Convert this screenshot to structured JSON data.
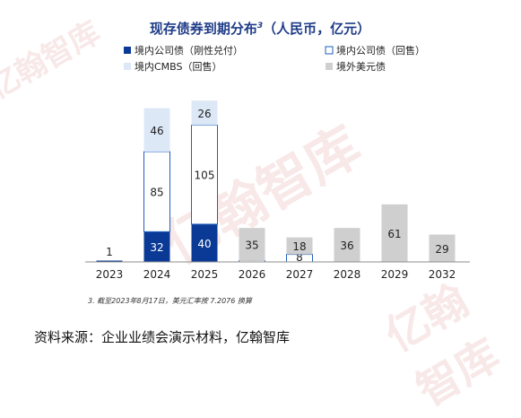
{
  "page": {
    "footnote": "3. 截至2023年8月17日，美元汇率按 7.2076 换算",
    "source": "资料来源：企业业绩会演示材料，亿翰智库",
    "watermark": "亿翰智库"
  },
  "colors": {
    "rigid": "#0b3a96",
    "puttable": "#ffffff",
    "puttable_border": "#1f5fbf",
    "cmbs": "#dde8f7",
    "offshore": "#cfcfcf",
    "title": "#1f3c88",
    "text": "#222222"
  },
  "chart_data": {
    "type": "bar",
    "stacked": true,
    "title": "现存债券到期分布",
    "title_sup": "3",
    "title_unit": "（人民币，亿元）",
    "categories": [
      "2023",
      "2024",
      "2025",
      "2026",
      "2027",
      "2028",
      "2029",
      "2032"
    ],
    "series": [
      {
        "name": "境内公司债（刚性兑付）",
        "key": "rigid",
        "values": [
          1,
          32,
          40,
          0,
          0,
          0,
          0,
          0
        ]
      },
      {
        "name": "境内公司债（回售）",
        "key": "puttable",
        "values": [
          0,
          85,
          105,
          1,
          8,
          0,
          0,
          0
        ]
      },
      {
        "name": "境内CMBS（回售）",
        "key": "cmbs",
        "values": [
          0,
          46,
          26,
          0,
          0,
          0,
          0,
          0
        ]
      },
      {
        "name": "境外美元债",
        "key": "offshore",
        "values": [
          0,
          0,
          0,
          35,
          18,
          36,
          61,
          29
        ]
      }
    ],
    "ylim": [
      0,
      175
    ],
    "grid": false,
    "legend_position": "top, two columns"
  }
}
